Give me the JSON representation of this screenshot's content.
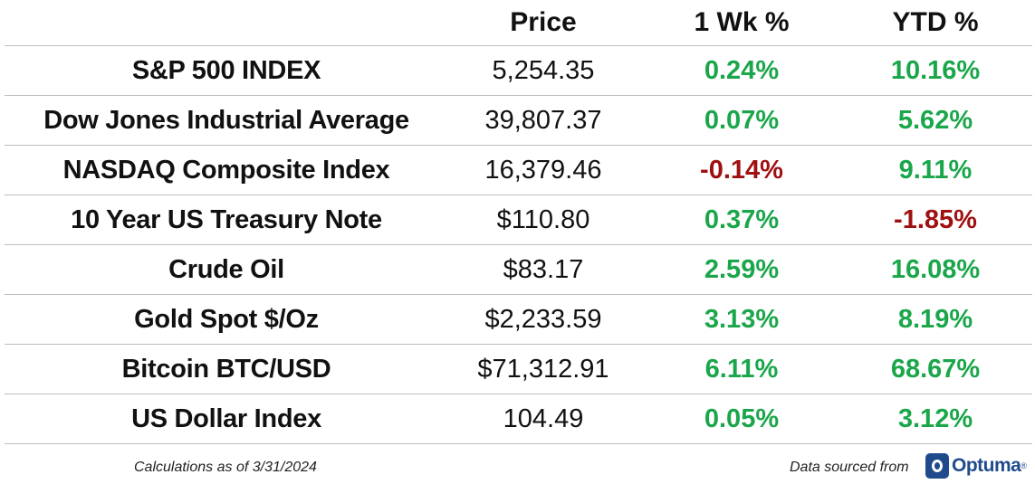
{
  "header": {
    "price": "Price",
    "week": "1 Wk %",
    "ytd": "YTD %"
  },
  "rows": [
    {
      "name": "S&P 500 INDEX",
      "price": "5,254.35",
      "week": "0.24%",
      "ytd": "10.16%"
    },
    {
      "name": "Dow Jones Industrial Average",
      "price": "39,807.37",
      "week": "0.07%",
      "ytd": "5.62%"
    },
    {
      "name": "NASDAQ Composite Index",
      "price": "16,379.46",
      "week": "-0.14%",
      "ytd": "9.11%"
    },
    {
      "name": "10 Year US Treasury Note",
      "price": "$110.80",
      "week": "0.37%",
      "ytd": "-1.85%"
    },
    {
      "name": "Crude Oil",
      "price": "$83.17",
      "week": "2.59%",
      "ytd": "16.08%"
    },
    {
      "name": "Gold Spot $/Oz",
      "price": "$2,233.59",
      "week": "3.13%",
      "ytd": "8.19%"
    },
    {
      "name": "Bitcoin BTC/USD",
      "price": "$71,312.91",
      "week": "6.11%",
      "ytd": "68.67%"
    },
    {
      "name": "US Dollar Index",
      "price": "104.49",
      "week": "0.05%",
      "ytd": "3.12%"
    }
  ],
  "footer": {
    "calc_note": "Calculations as of 3/31/2024",
    "source_note": "Data sourced from",
    "logo_text": "Optuma",
    "logo_mark": "®"
  },
  "colors": {
    "positive": "#1aa64a",
    "negative": "#a01010",
    "brand": "#1f4a8c"
  }
}
